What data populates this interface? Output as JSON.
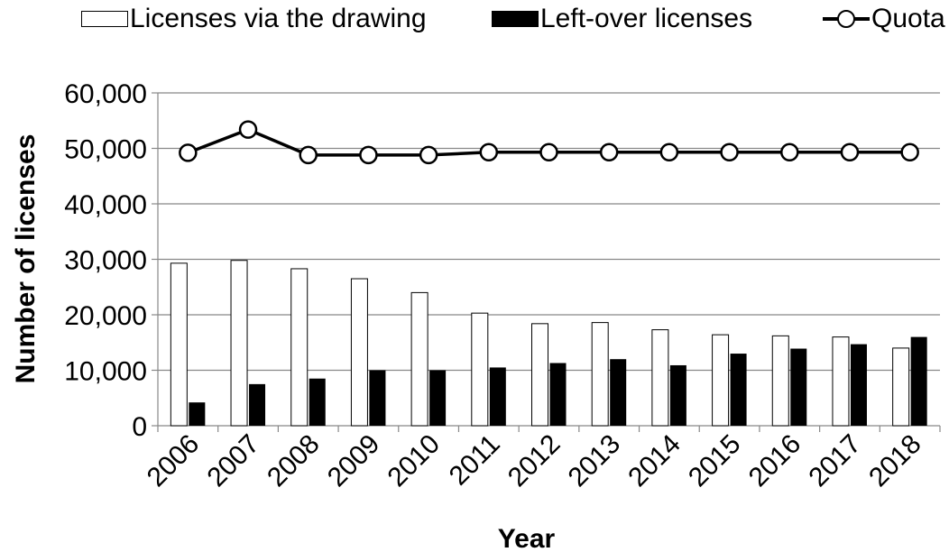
{
  "legend": {
    "drawing_label": "Licenses via the drawing",
    "leftover_label": "Left-over licenses",
    "quota_label": "Quota"
  },
  "chart_data": {
    "type": "bar",
    "categories": [
      "2006",
      "2007",
      "2008",
      "2009",
      "2010",
      "2011",
      "2012",
      "2013",
      "2014",
      "2015",
      "2016",
      "2017",
      "2018"
    ],
    "series": [
      {
        "name": "Licenses via the drawing",
        "kind": "bar",
        "color": "#ffffff",
        "values": [
          29300,
          29800,
          28300,
          26500,
          24000,
          20300,
          18400,
          18600,
          17300,
          16400,
          16200,
          16000,
          14000
        ]
      },
      {
        "name": "Left-over licenses",
        "kind": "bar",
        "color": "#000000",
        "values": [
          4200,
          7500,
          8500,
          10000,
          10000,
          10500,
          11300,
          12000,
          10900,
          13000,
          13900,
          14700,
          16000
        ]
      },
      {
        "name": "Quota",
        "kind": "line",
        "color": "#000000",
        "values": [
          49200,
          53400,
          48800,
          48800,
          48800,
          49300,
          49300,
          49300,
          49300,
          49300,
          49300,
          49300,
          49300
        ]
      }
    ],
    "title": "",
    "xlabel": "Year",
    "ylabel": "Number of licenses",
    "ylim": [
      0,
      60000
    ],
    "yticks": [
      0,
      10000,
      20000,
      30000,
      40000,
      50000,
      60000
    ],
    "ytick_labels": [
      "0",
      "10,000",
      "20,000",
      "30,000",
      "40,000",
      "50,000",
      "60,000"
    ],
    "grid": true,
    "legend_position": "top"
  }
}
